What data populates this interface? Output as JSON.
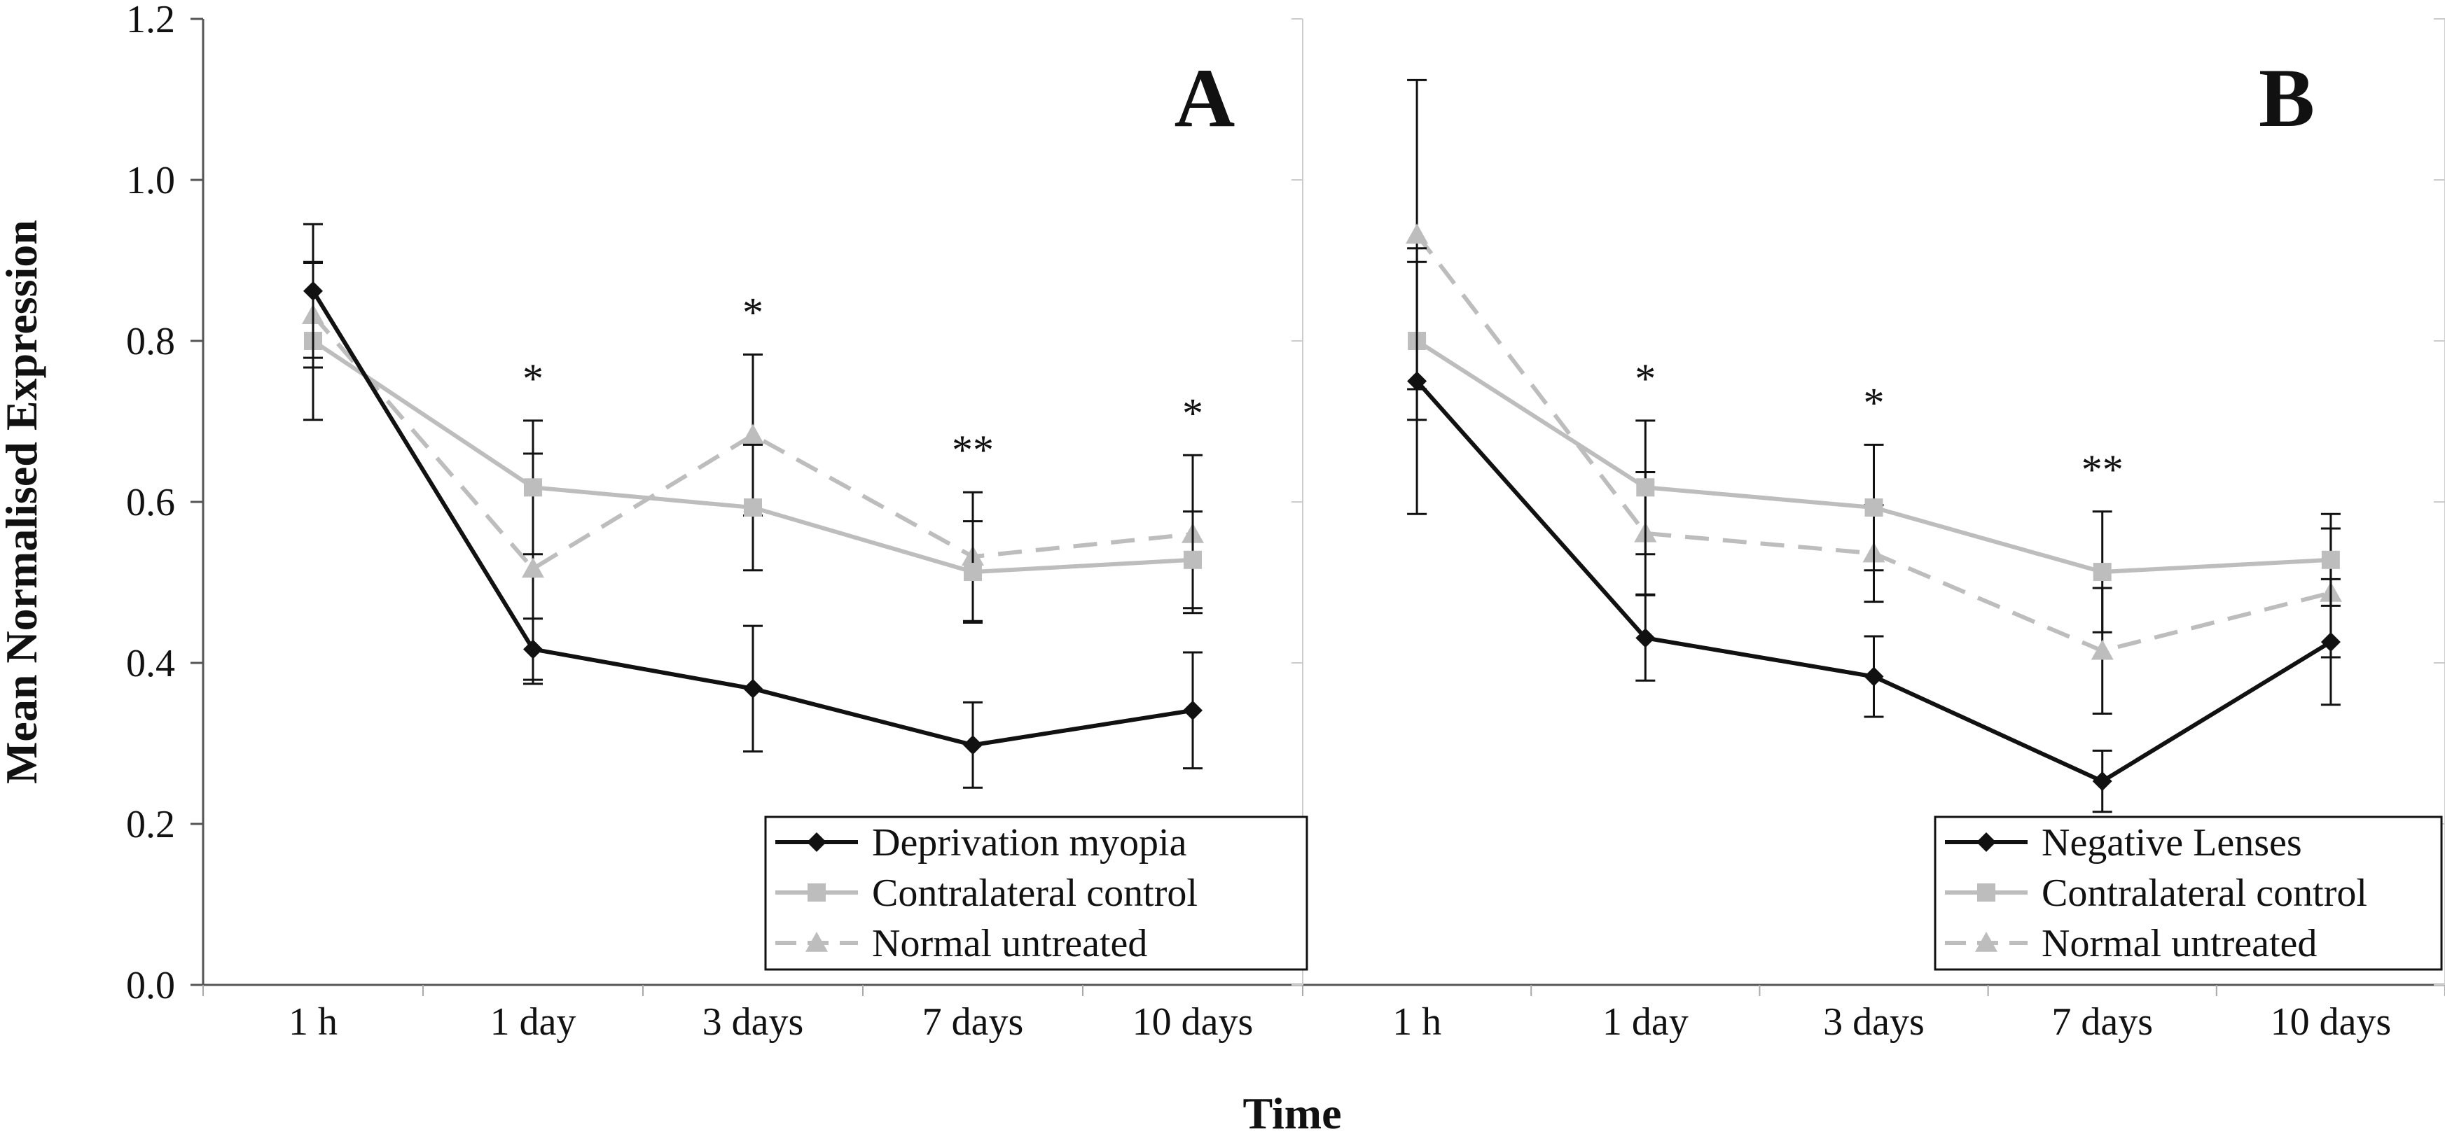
{
  "chart_data": [
    {
      "type": "line",
      "panel_label": "A",
      "categories": [
        "1 h",
        "1 day",
        "3 days",
        "7 days",
        "10 days"
      ],
      "ylabel": "Mean Normalised Expression",
      "xlabel": "Time",
      "ylim": [
        0.0,
        1.2
      ],
      "yticks": [
        "0.0",
        "0.2",
        "0.4",
        "0.6",
        "0.8",
        "1.0",
        "1.2"
      ],
      "legend_position": "bottom-right",
      "series": [
        {
          "name": "Deprivation myopia",
          "color": "#111111",
          "marker": "diamond",
          "dash": "solid",
          "values": [
            0.862,
            0.417,
            0.368,
            0.298,
            0.341
          ],
          "errors": [
            0.083,
            0.038,
            0.078,
            0.053,
            0.072
          ]
        },
        {
          "name": "Contralateral control",
          "color": "#bdbdbd",
          "marker": "square",
          "dash": "solid",
          "values": [
            0.8,
            0.618,
            0.593,
            0.513,
            0.528
          ],
          "errors": [
            0.098,
            0.083,
            0.078,
            0.063,
            0.06
          ]
        },
        {
          "name": "Normal untreated",
          "color": "#bdbdbd",
          "marker": "triangle",
          "dash": "dashed",
          "values": [
            0.832,
            0.517,
            0.683,
            0.532,
            0.56
          ],
          "errors": [
            0.065,
            0.143,
            0.1,
            0.08,
            0.098
          ]
        }
      ],
      "significance": [
        "",
        "*",
        "*",
        "**",
        "*"
      ]
    },
    {
      "type": "line",
      "panel_label": "B",
      "categories": [
        "1 h",
        "1 day",
        "3 days",
        "7 days",
        "10 days"
      ],
      "ylim": [
        0.0,
        1.2
      ],
      "legend_position": "bottom-right",
      "series": [
        {
          "name": "Negative Lenses",
          "color": "#111111",
          "marker": "diamond",
          "dash": "solid",
          "values": [
            0.75,
            0.431,
            0.383,
            0.253,
            0.426
          ],
          "errors": [
            0.165,
            0.053,
            0.05,
            0.038,
            0.078
          ]
        },
        {
          "name": "Contralateral control",
          "color": "#bdbdbd",
          "marker": "square",
          "dash": "solid",
          "values": [
            0.8,
            0.618,
            0.593,
            0.513,
            0.528
          ],
          "errors": [
            0.098,
            0.083,
            0.078,
            0.075,
            0.057
          ]
        },
        {
          "name": "Normal untreated",
          "color": "#bdbdbd",
          "marker": "triangle",
          "dash": "dashed",
          "values": [
            0.932,
            0.561,
            0.536,
            0.415,
            0.487
          ],
          "errors": [
            0.192,
            0.076,
            0.06,
            0.078,
            0.08
          ]
        }
      ],
      "significance": [
        "",
        "*",
        "*",
        "**",
        ""
      ]
    }
  ]
}
